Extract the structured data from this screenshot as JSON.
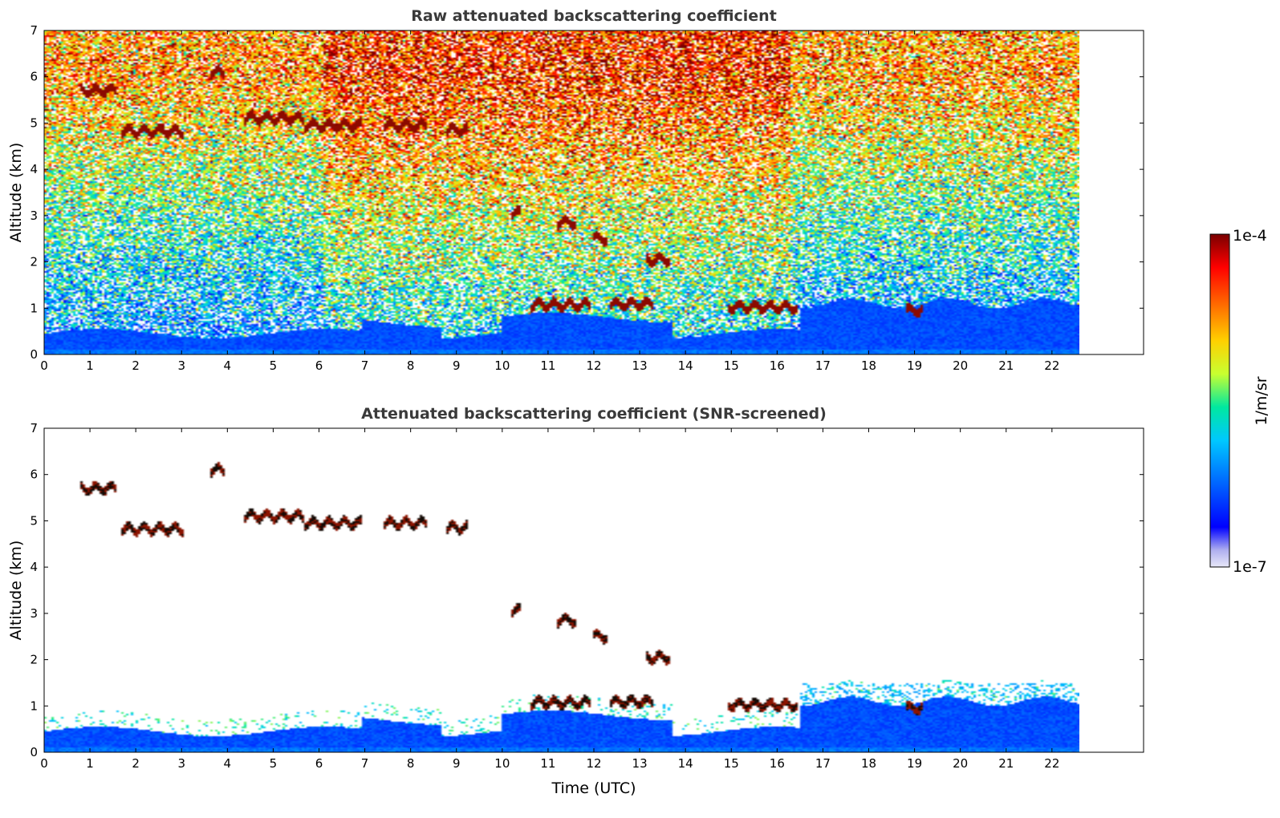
{
  "chart_data": [
    {
      "type": "heatmap",
      "title": "Raw attenuated backscattering coefficient",
      "xlabel": "",
      "ylabel": "Altitude (km)",
      "xlim": [
        0,
        24
      ],
      "ylim": [
        0,
        7
      ],
      "data_extent_x": [
        0,
        22.2
      ],
      "xticks": [
        "0",
        "1",
        "2",
        "3",
        "4",
        "5",
        "6",
        "7",
        "8",
        "9",
        "10",
        "11",
        "12",
        "13",
        "14",
        "15",
        "16",
        "17",
        "18",
        "19",
        "20",
        "21",
        "22"
      ],
      "yticks": [
        "0",
        "1",
        "2",
        "3",
        "4",
        "5",
        "6",
        "7"
      ],
      "screened": false,
      "cloud_layers": [
        {
          "t0": 0.75,
          "t1": 1.55,
          "alt": 5.7
        },
        {
          "t0": 1.65,
          "t1": 3.0,
          "alt": 4.82
        },
        {
          "t0": 3.55,
          "t1": 3.85,
          "alt": 6.1
        },
        {
          "t0": 4.3,
          "t1": 5.6,
          "alt": 5.1
        },
        {
          "t0": 5.6,
          "t1": 6.8,
          "alt": 4.95
        },
        {
          "t0": 7.3,
          "t1": 8.2,
          "alt": 4.95
        },
        {
          "t0": 8.6,
          "t1": 9.1,
          "alt": 4.85
        },
        {
          "t0": 10.0,
          "t1": 10.2,
          "alt": 3.05
        },
        {
          "t0": 10.45,
          "t1": 11.7,
          "alt": 1.07
        },
        {
          "t0": 11.0,
          "t1": 11.4,
          "alt": 2.85
        },
        {
          "t0": 11.75,
          "t1": 12.1,
          "alt": 2.5
        },
        {
          "t0": 12.15,
          "t1": 13.05,
          "alt": 1.09
        },
        {
          "t0": 12.9,
          "t1": 13.4,
          "alt": 2.05
        },
        {
          "t0": 14.65,
          "t1": 16.15,
          "alt": 1.02
        },
        {
          "t0": 18.5,
          "t1": 18.85,
          "alt": 0.95
        }
      ]
    },
    {
      "type": "heatmap",
      "title": "Attenuated backscattering coefficient (SNR-screened)",
      "xlabel": "Time (UTC)",
      "ylabel": "Altitude (km)",
      "xlim": [
        0,
        24
      ],
      "ylim": [
        0,
        7
      ],
      "data_extent_x": [
        0,
        22.2
      ],
      "xticks": [
        "0",
        "1",
        "2",
        "3",
        "4",
        "5",
        "6",
        "7",
        "8",
        "9",
        "10",
        "11",
        "12",
        "13",
        "14",
        "15",
        "16",
        "17",
        "18",
        "19",
        "20",
        "21",
        "22"
      ],
      "yticks": [
        "0",
        "1",
        "2",
        "3",
        "4",
        "5",
        "6",
        "7"
      ],
      "screened": true
    }
  ],
  "colorbar": {
    "label": "1/m/sr",
    "min_label": "1e-7",
    "max_label": "1e-4",
    "scale": "log",
    "colors": [
      "#e8e8f8",
      "#b0b0f0",
      "#0000ff",
      "#0064ff",
      "#00c8ff",
      "#00e8a0",
      "#c8ff30",
      "#ffd000",
      "#ff6000",
      "#ff0000",
      "#7a0000"
    ]
  }
}
